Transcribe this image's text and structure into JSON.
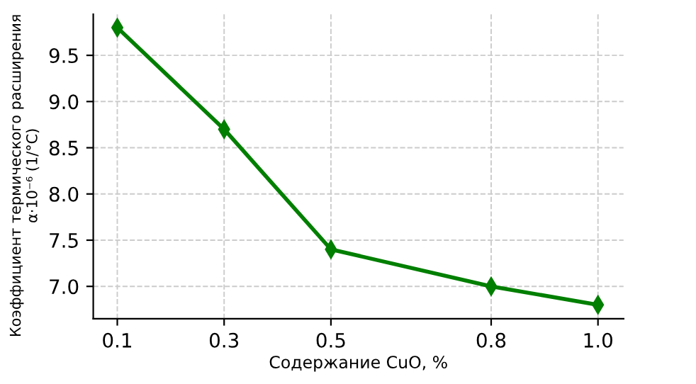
{
  "chart_data": {
    "type": "line",
    "xlabel": "Содержание CuO, %",
    "ylabel": "Коэффициент термического расширения\nα·10⁻⁶ (1/°C)",
    "x": [
      0.1,
      0.3,
      0.5,
      0.8,
      1.0
    ],
    "series": [
      {
        "color": "#007f00",
        "values": [
          9.8,
          8.7,
          7.4,
          7.0,
          6.8
        ],
        "errors": [
          0.05,
          0.05,
          0.05,
          0.05,
          0.05
        ]
      }
    ],
    "xlim": [
      0.055,
      1.048
    ],
    "ylim": [
      6.65,
      9.945
    ],
    "xticks": [
      0.1,
      0.3,
      0.5,
      {
        "value": 0.8,
        "label": "0.8"
      },
      {
        "value": 1.0,
        "label": "1.0"
      }
    ],
    "yticks": [
      {
        "value": 7.0,
        "label": "7.0"
      },
      7.5,
      {
        "value": 8.0,
        "label": "8.0"
      },
      8.5,
      {
        "value": 9.0,
        "label": "9.0"
      },
      9.5
    ],
    "grid": true,
    "marker": "diamond",
    "line_style": "solid"
  }
}
